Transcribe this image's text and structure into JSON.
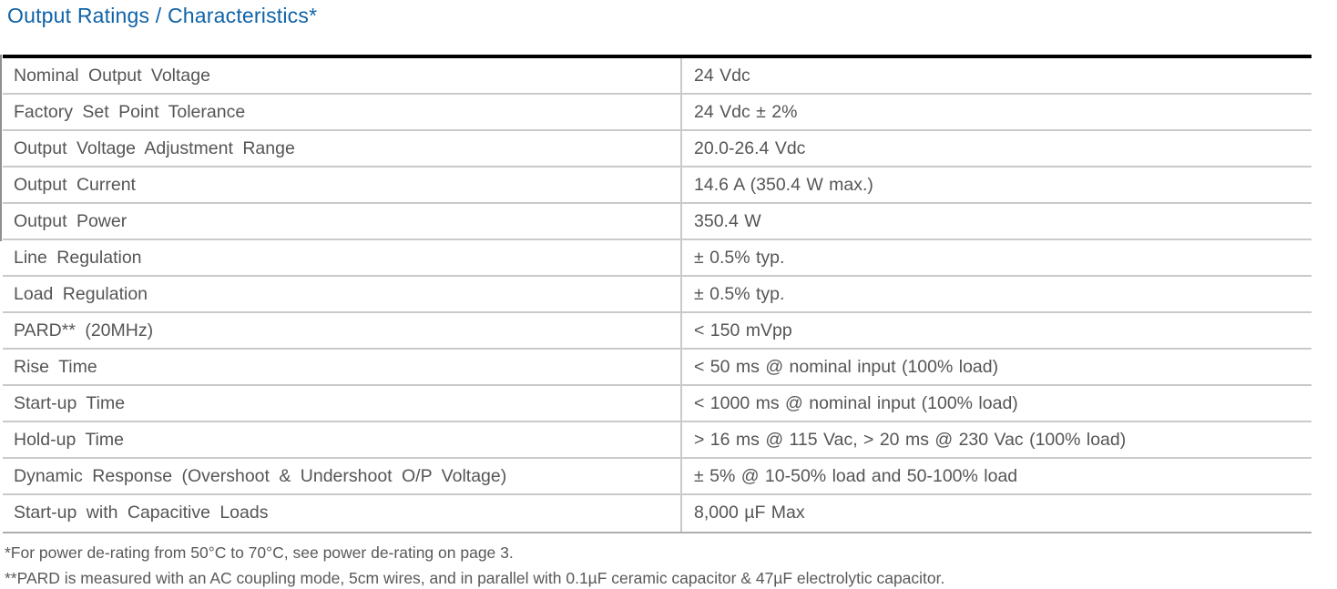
{
  "page": {
    "title": "Output Ratings / Characteristics*"
  },
  "colors": {
    "title_blue": "#0f63a8",
    "body_text_gray": "#555555",
    "footnote_gray": "#595959",
    "row_separator_gray": "#cacaca",
    "table_top_border": "#000000",
    "table_bottom_border": "#aeaeae",
    "background": "#ffffff"
  },
  "table": {
    "rows": [
      {
        "label": "Nominal Output Voltage",
        "value": "24 Vdc"
      },
      {
        "label": "Factory Set Point Tolerance",
        "value": "24 Vdc ± 2%"
      },
      {
        "label": "Output Voltage Adjustment Range",
        "value": "20.0-26.4 Vdc"
      },
      {
        "label": "Output Current",
        "value": "14.6 A (350.4 W max.)"
      },
      {
        "label": "Output Power",
        "value": "350.4 W"
      },
      {
        "label": "Line Regulation",
        "value": "± 0.5% typ."
      },
      {
        "label": "Load Regulation",
        "value": "± 0.5% typ."
      },
      {
        "label": "PARD** (20MHz)",
        "value": "< 150 mVpp"
      },
      {
        "label": "Rise Time",
        "value": "< 50 ms @ nominal input (100% load)"
      },
      {
        "label": "Start-up Time",
        "value": "< 1000 ms @ nominal input (100% load)"
      },
      {
        "label": "Hold-up Time",
        "value": "> 16 ms @ 115 Vac, > 20 ms @ 230 Vac (100% load)"
      },
      {
        "label": "Dynamic Response (Overshoot & Undershoot O/P Voltage)",
        "value": "± 5% @ 10-50% load and 50-100% load"
      },
      {
        "label": "Start-up with Capacitive Loads",
        "value": "8,000 µF Max"
      }
    ]
  },
  "footnotes": [
    "*For power de-rating from 50°C to 70°C, see power de-rating on page 3.",
    "**PARD is measured with an AC coupling mode, 5cm wires, and in parallel with 0.1µF ceramic capacitor & 47µF electrolytic capacitor."
  ]
}
